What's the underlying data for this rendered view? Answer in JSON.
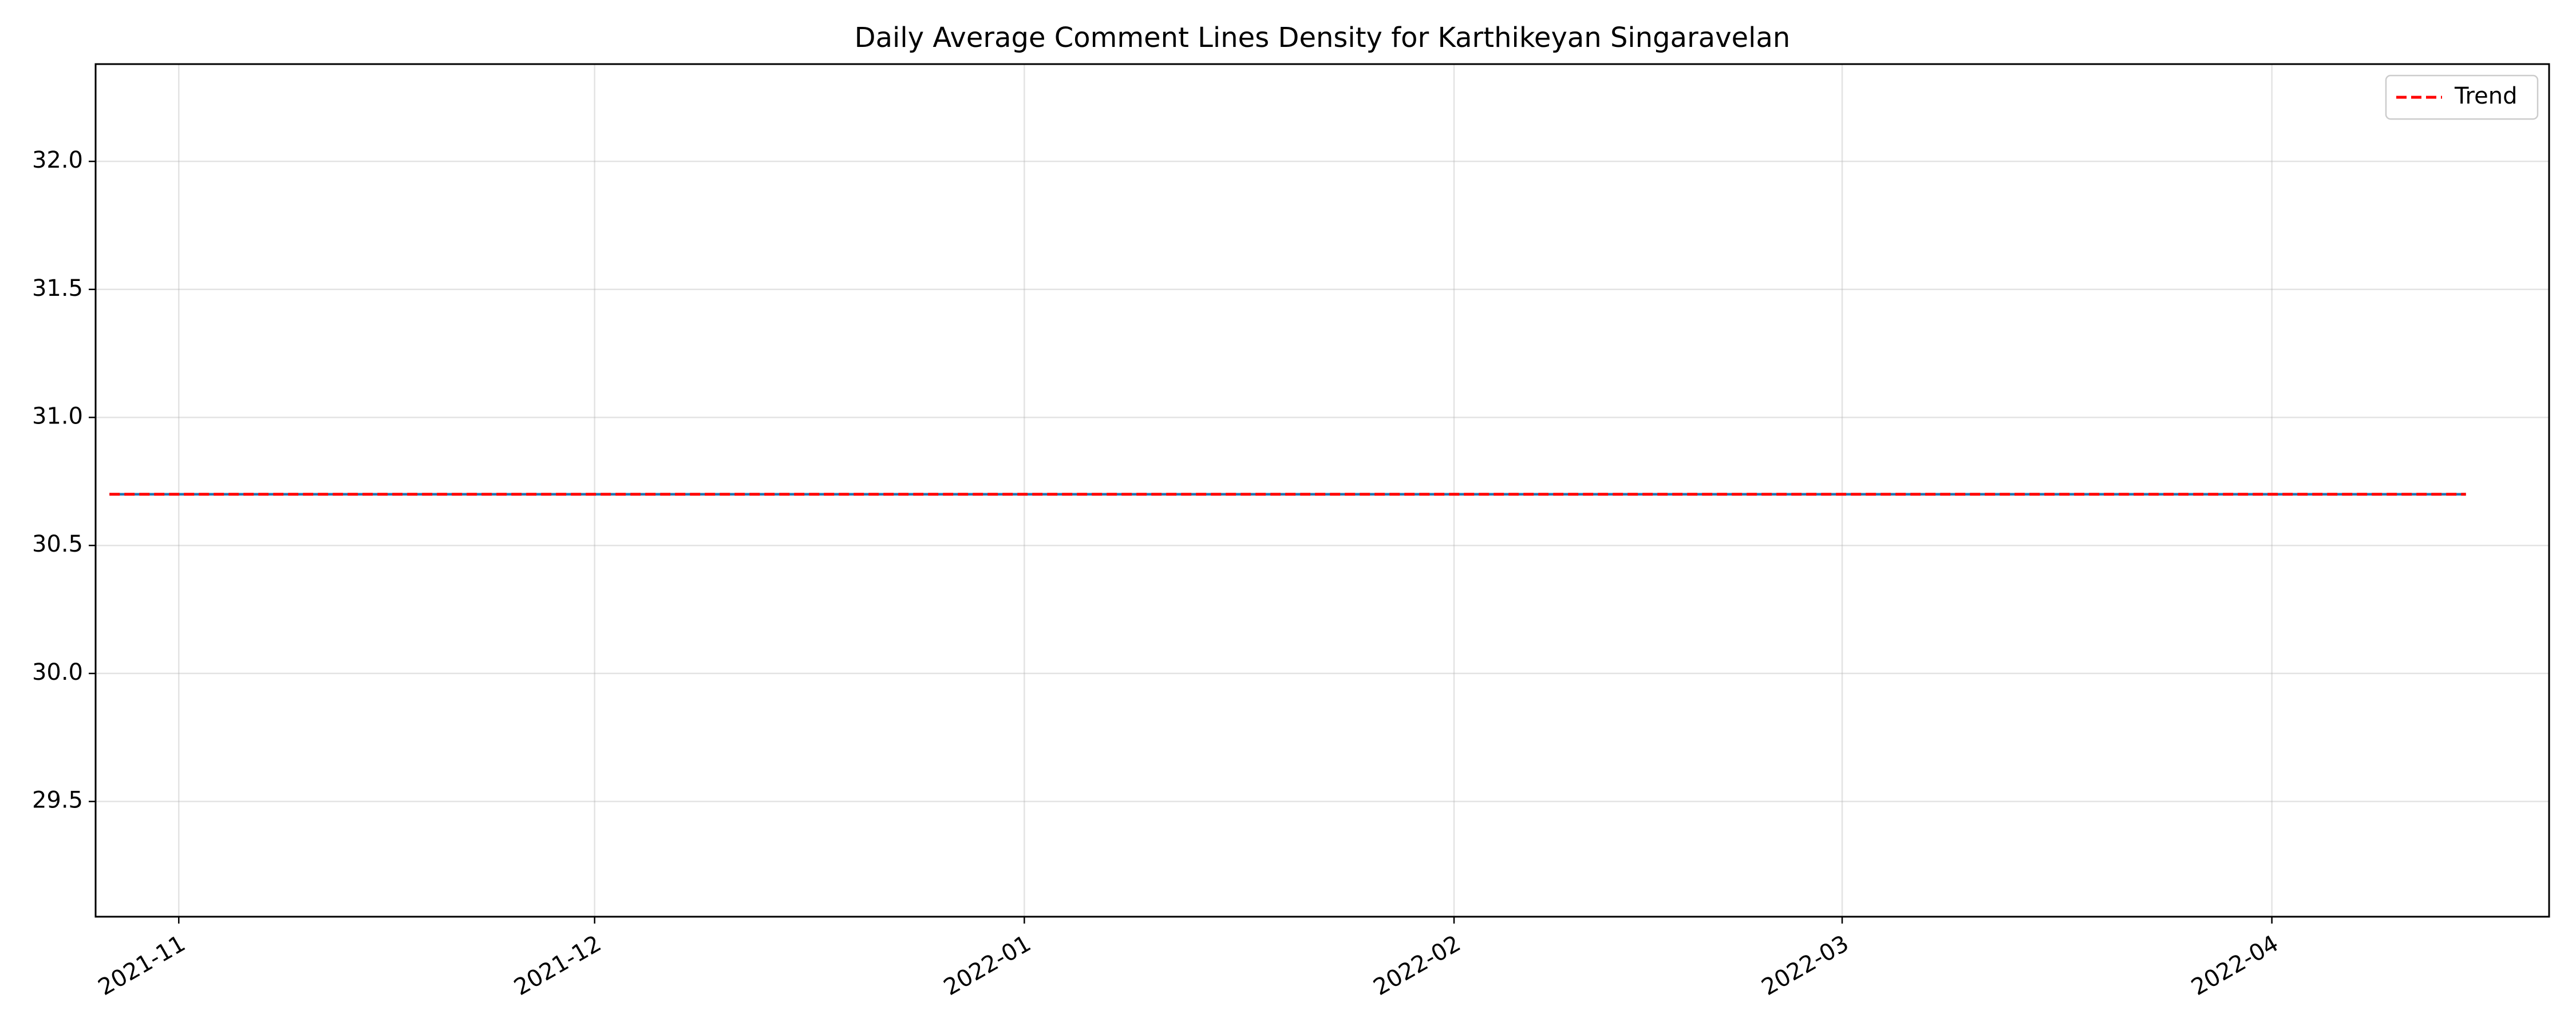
{
  "chart_data": {
    "type": "line",
    "title": "Daily Average Comment Lines Density for Karthikeyan Singaravelan",
    "xlabel": "",
    "ylabel": "",
    "x_axis": {
      "kind": "date",
      "range": [
        "2021-10-26",
        "2022-04-21"
      ],
      "ticks": [
        "2021-11-01",
        "2021-12-01",
        "2022-01-01",
        "2022-02-01",
        "2022-03-01",
        "2022-04-01"
      ],
      "tick_labels": [
        "2021-11",
        "2021-12",
        "2022-01",
        "2022-02",
        "2022-03",
        "2022-04"
      ]
    },
    "y_axis": {
      "range": [
        29.05,
        32.38
      ],
      "ticks": [
        29.5,
        30.0,
        30.5,
        31.0,
        31.5,
        32.0
      ],
      "tick_labels": [
        "29.5",
        "30.0",
        "30.5",
        "31.0",
        "31.5",
        "32.0"
      ]
    },
    "grid": true,
    "legend": {
      "placement": "top-right",
      "entries": [
        "Trend"
      ]
    },
    "series": [
      {
        "color": "#1f77b4",
        "style": "solid",
        "x": [
          "2021-10-27",
          "2022-04-15"
        ],
        "y": [
          30.7,
          30.7
        ]
      },
      {
        "name": "Trend",
        "color": "#ff0000",
        "style": "dashed",
        "x": [
          "2021-10-27",
          "2022-04-15"
        ],
        "y": [
          30.7,
          30.7
        ]
      }
    ]
  }
}
